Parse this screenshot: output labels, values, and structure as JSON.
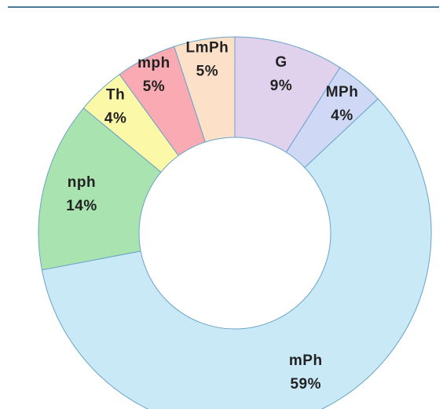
{
  "chart_data": {
    "type": "pie",
    "donut": true,
    "start_angle_deg": 0,
    "direction": "clockwise",
    "slices": [
      {
        "label": "G",
        "value": 9,
        "percent_text": "9%",
        "color": "#e0d2ed"
      },
      {
        "label": "MPh",
        "value": 4,
        "percent_text": "4%",
        "color": "#cfd9f5"
      },
      {
        "label": "mPh",
        "value": 59,
        "percent_text": "59%",
        "color": "#c9e9f6"
      },
      {
        "label": "nph",
        "value": 14,
        "percent_text": "14%",
        "color": "#a9e4b0"
      },
      {
        "label": "Th",
        "value": 4,
        "percent_text": "4%",
        "color": "#fbf8a8"
      },
      {
        "label": "mph",
        "value": 5,
        "percent_text": "5%",
        "color": "#f9aab2"
      },
      {
        "label": "LmPh",
        "value": 5,
        "percent_text": "5%",
        "color": "#fce0c8"
      }
    ],
    "slice_border_color": "#6aa3c9",
    "hole_color": "#ffffff"
  },
  "colors": {
    "rule": "#4a7a99",
    "label_text": "#222222"
  }
}
